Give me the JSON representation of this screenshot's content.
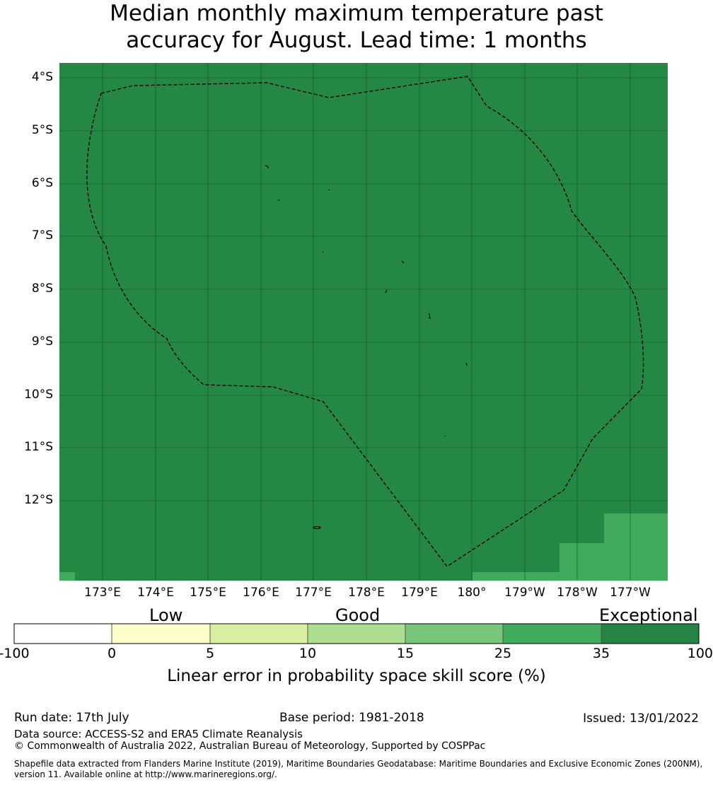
{
  "title": {
    "line1": "Median monthly maximum temperature past",
    "line2": "accuracy for August. Lead time: 1 months"
  },
  "map": {
    "background_color": "#258744",
    "lat_labels": [
      "4°S",
      "5°S",
      "6°S",
      "7°S",
      "8°S",
      "9°S",
      "10°S",
      "11°S",
      "12°S"
    ],
    "lon_labels": [
      "173°E",
      "174°E",
      "175°E",
      "176°E",
      "177°E",
      "178°E",
      "179°E",
      "180°",
      "179°W",
      "178°W",
      "177°W"
    ],
    "boundary_style": "dashed black EEZ outline"
  },
  "legend": {
    "categories": {
      "low": "Low",
      "good": "Good",
      "exceptional": "Exceptional"
    },
    "ticks": [
      "-100",
      "0",
      "5",
      "10",
      "15",
      "25",
      "35",
      "100"
    ],
    "colors": [
      "#ffffff",
      "#ffffcc",
      "#d9f0a3",
      "#addd8e",
      "#78c679",
      "#41ab5d",
      "#238443"
    ],
    "label": "Linear error in probability space skill score (%)"
  },
  "footer": {
    "run_date": "Run date: 17th July",
    "base_period": "Base period: 1981-2018",
    "issued": "Issued: 13/01/2022",
    "data_source": "Data source: ACCESS-S2 and ERA5 Climate Reanalysis",
    "copyright": "© Commonwealth of Australia 2022, Australian Bureau of Meteorology, Supported by COSPPac",
    "shapefile_line1": "Shapefile data extracted from Flanders Marine Institute (2019), Maritime Boundaries Geodatabase: Maritime Boundaries and Exclusive Economic Zones (200NM),",
    "shapefile_line2": "version 11. Available online at http://www.marineregions.org/."
  }
}
